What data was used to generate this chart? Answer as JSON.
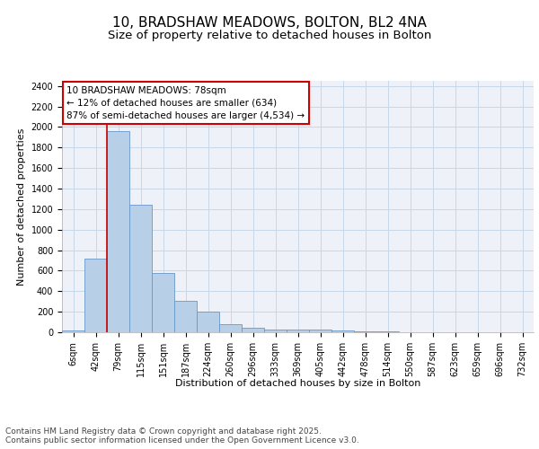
{
  "title_line1": "10, BRADSHAW MEADOWS, BOLTON, BL2 4NA",
  "title_line2": "Size of property relative to detached houses in Bolton",
  "xlabel": "Distribution of detached houses by size in Bolton",
  "ylabel": "Number of detached properties",
  "bar_labels": [
    "6sqm",
    "42sqm",
    "79sqm",
    "115sqm",
    "151sqm",
    "187sqm",
    "224sqm",
    "260sqm",
    "296sqm",
    "333sqm",
    "369sqm",
    "405sqm",
    "442sqm",
    "478sqm",
    "514sqm",
    "550sqm",
    "587sqm",
    "623sqm",
    "659sqm",
    "696sqm",
    "732sqm"
  ],
  "bar_values": [
    15,
    715,
    1960,
    1240,
    580,
    305,
    205,
    75,
    40,
    30,
    25,
    30,
    20,
    5,
    5,
    0,
    0,
    0,
    0,
    0,
    0
  ],
  "bar_color": "#b8cfe8",
  "bar_edge_color": "#6898c8",
  "grid_color": "#c8d8e8",
  "background_color": "#eef2f8",
  "annotation_text": "10 BRADSHAW MEADOWS: 78sqm\n← 12% of detached houses are smaller (634)\n87% of semi-detached houses are larger (4,534) →",
  "annotation_box_color": "#ffffff",
  "annotation_border_color": "#cc0000",
  "vline_color": "#cc0000",
  "ylim": [
    0,
    2450
  ],
  "yticks": [
    0,
    200,
    400,
    600,
    800,
    1000,
    1200,
    1400,
    1600,
    1800,
    2000,
    2200,
    2400
  ],
  "footer_text": "Contains HM Land Registry data © Crown copyright and database right 2025.\nContains public sector information licensed under the Open Government Licence v3.0.",
  "title_fontsize": 11,
  "subtitle_fontsize": 9.5,
  "axis_label_fontsize": 8,
  "tick_fontsize": 7,
  "annotation_fontsize": 7.5,
  "footer_fontsize": 6.5
}
